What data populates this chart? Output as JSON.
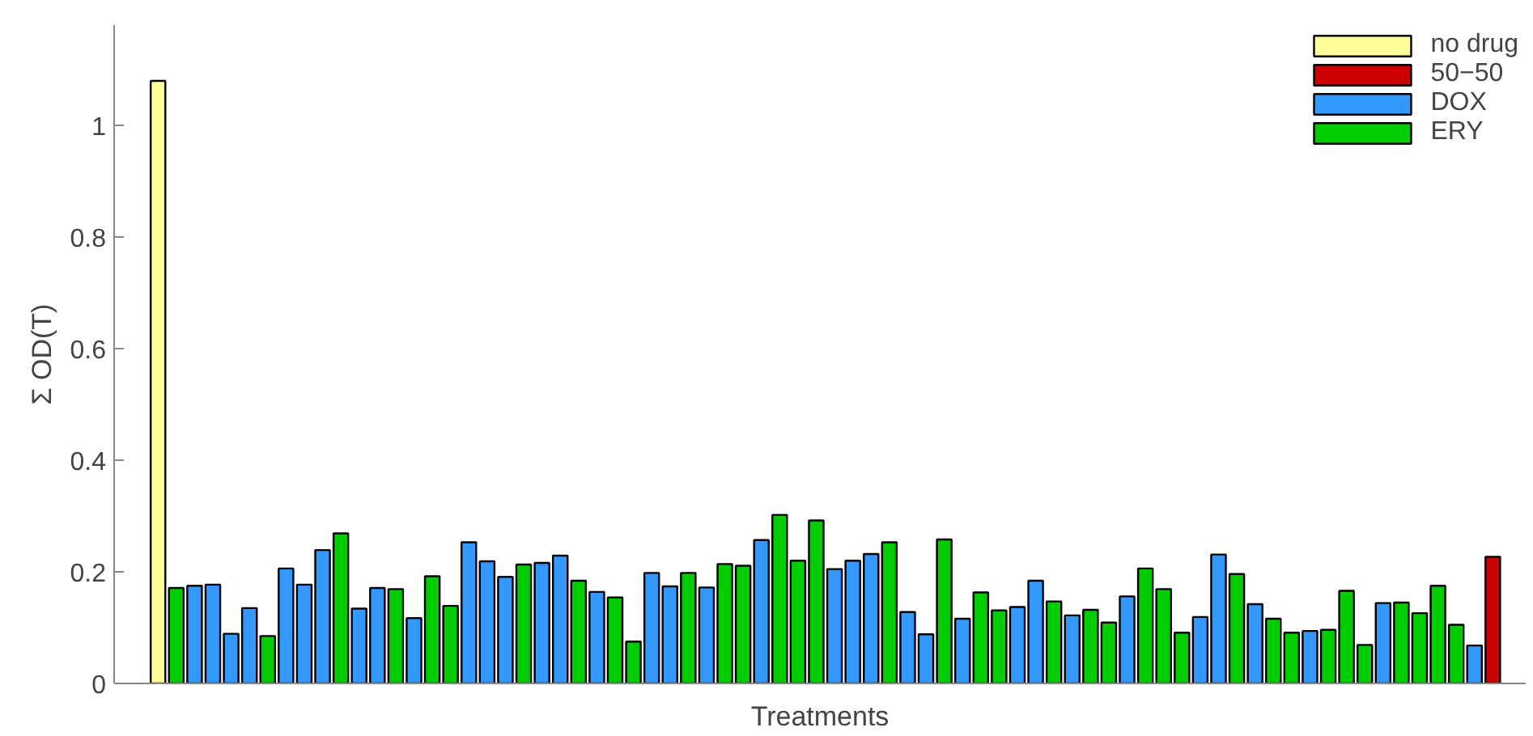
{
  "chart_data": {
    "type": "bar",
    "xlabel": "Treatments",
    "ylabel": "Σ OD(T)",
    "categories": [
      null,
      null,
      null,
      null,
      null,
      null,
      null,
      null,
      null,
      null,
      null,
      null,
      null,
      null,
      null,
      null,
      null,
      null,
      null,
      null,
      null,
      null,
      null,
      null,
      null,
      null,
      null,
      null,
      null,
      null,
      null,
      null,
      null,
      null,
      null,
      null,
      null,
      null,
      null,
      null,
      null,
      null,
      null,
      null,
      null,
      null,
      null,
      null,
      null,
      null,
      null,
      null,
      null,
      null,
      null,
      null,
      null,
      null,
      null,
      null,
      null,
      null,
      null,
      null,
      null,
      null,
      null,
      null,
      null,
      null,
      null,
      null,
      null,
      null
    ],
    "series": [
      {
        "name": "no drug",
        "color": "#ffff99",
        "values": [
          1.08,
          null,
          null,
          null,
          null,
          null,
          null,
          null,
          null,
          null,
          null,
          null,
          null,
          null,
          null,
          null,
          null,
          null,
          null,
          null,
          null,
          null,
          null,
          null,
          null,
          null,
          null,
          null,
          null,
          null,
          null,
          null,
          null,
          null,
          null,
          null,
          null,
          null,
          null,
          null,
          null,
          null,
          null,
          null,
          null,
          null,
          null,
          null,
          null,
          null,
          null,
          null,
          null,
          null,
          null,
          null,
          null,
          null,
          null,
          null,
          null,
          null,
          null,
          null,
          null,
          null,
          null,
          null,
          null,
          null,
          null,
          null,
          null,
          null
        ]
      },
      {
        "name": "50−50",
        "color": "#cc0000",
        "values": [
          null,
          null,
          null,
          null,
          null,
          null,
          null,
          null,
          null,
          null,
          null,
          null,
          null,
          null,
          null,
          null,
          null,
          null,
          null,
          null,
          null,
          null,
          null,
          null,
          null,
          null,
          null,
          null,
          null,
          null,
          null,
          null,
          null,
          null,
          null,
          null,
          null,
          null,
          null,
          null,
          null,
          null,
          null,
          null,
          null,
          null,
          null,
          null,
          null,
          null,
          null,
          null,
          null,
          null,
          null,
          null,
          null,
          null,
          null,
          null,
          null,
          null,
          null,
          null,
          null,
          null,
          null,
          null,
          null,
          null,
          null,
          null,
          null,
          0.227
        ]
      },
      {
        "name": "DOX",
        "color": "#3399ff",
        "values": [
          null,
          null,
          0.175,
          0.177,
          0.089,
          0.135,
          null,
          0.206,
          0.177,
          0.239,
          null,
          0.134,
          0.171,
          null,
          0.117,
          null,
          null,
          0.253,
          0.219,
          0.191,
          null,
          0.216,
          0.229,
          null,
          0.164,
          null,
          null,
          0.198,
          0.174,
          null,
          0.172,
          null,
          null,
          0.257,
          null,
          null,
          null,
          0.205,
          0.22,
          0.232,
          null,
          0.128,
          0.088,
          null,
          0.116,
          null,
          null,
          0.137,
          0.184,
          null,
          0.122,
          null,
          null,
          0.156,
          null,
          null,
          null,
          0.119,
          0.231,
          null,
          0.142,
          null,
          null,
          0.094,
          null,
          null,
          null,
          0.144,
          null,
          null,
          null,
          null,
          0.068,
          null
        ]
      },
      {
        "name": "ERY",
        "color": "#00cc00",
        "values": [
          null,
          0.171,
          null,
          null,
          null,
          null,
          0.085,
          null,
          null,
          null,
          0.269,
          null,
          null,
          0.169,
          null,
          0.192,
          0.139,
          null,
          null,
          null,
          0.213,
          null,
          null,
          0.184,
          null,
          0.154,
          0.075,
          null,
          null,
          0.198,
          null,
          0.214,
          0.211,
          null,
          0.302,
          0.22,
          0.292,
          null,
          null,
          null,
          0.253,
          null,
          null,
          0.258,
          null,
          0.163,
          0.131,
          null,
          null,
          0.147,
          null,
          0.132,
          0.109,
          null,
          0.206,
          0.169,
          0.091,
          null,
          null,
          0.196,
          null,
          0.116,
          0.091,
          null,
          0.096,
          0.166,
          0.069,
          null,
          0.145,
          0.126,
          0.175,
          0.105,
          null,
          null
        ]
      }
    ],
    "stacked": true,
    "ylim": [
      0,
      1.18
    ],
    "yticks": [
      0,
      0.2,
      0.4,
      0.6,
      0.8,
      1
    ],
    "grid": false,
    "legend": "top right"
  }
}
